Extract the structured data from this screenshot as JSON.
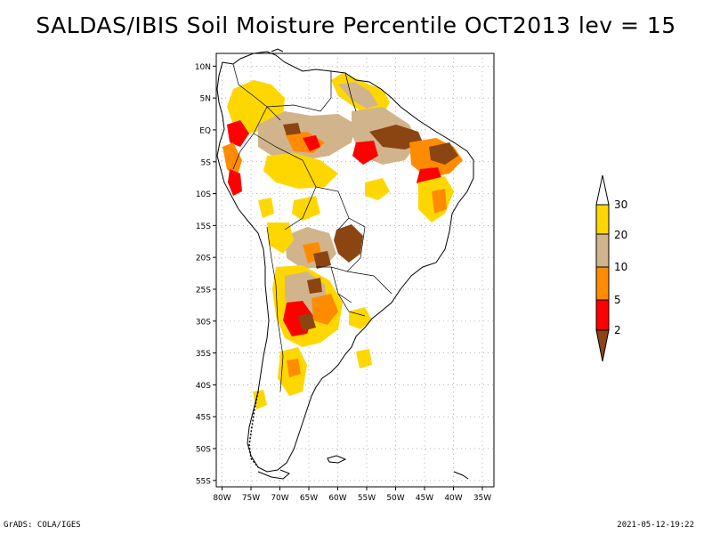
{
  "title": "SALDAS/IBIS Soil Moisture Percentile OCT2013 lev = 15",
  "map": {
    "lat_labels": [
      "10N",
      "5N",
      "EQ",
      "5S",
      "10S",
      "15S",
      "20S",
      "25S",
      "30S",
      "35S",
      "40S",
      "45S",
      "50S",
      "55S"
    ],
    "lon_labels": [
      "80W",
      "75W",
      "70W",
      "65W",
      "60W",
      "55W",
      "50W",
      "45W",
      "40W",
      "35W"
    ],
    "lat_values": [
      10,
      5,
      0,
      -5,
      -10,
      -15,
      -20,
      -25,
      -30,
      -35,
      -40,
      -45,
      -50,
      -55
    ],
    "lon_values": [
      -80,
      -75,
      -70,
      -65,
      -60,
      -55,
      -50,
      -45,
      -40,
      -35
    ],
    "extent": {
      "lon_min": -81,
      "lon_max": -33,
      "lat_min": -56,
      "lat_max": 12
    }
  },
  "legend": {
    "labels": [
      "30",
      "20",
      "10",
      "5",
      "2"
    ],
    "colors": {
      "above_30": "#ffffff",
      "p20_30": "#ffd700",
      "p10_20": "#d2b48c",
      "p5_10": "#ff8c00",
      "p2_5": "#ff0000",
      "below_2": "#8b4513"
    }
  },
  "footer": {
    "left": "GrADS: COLA/IGES",
    "right": "2021-05-12-19:22"
  }
}
